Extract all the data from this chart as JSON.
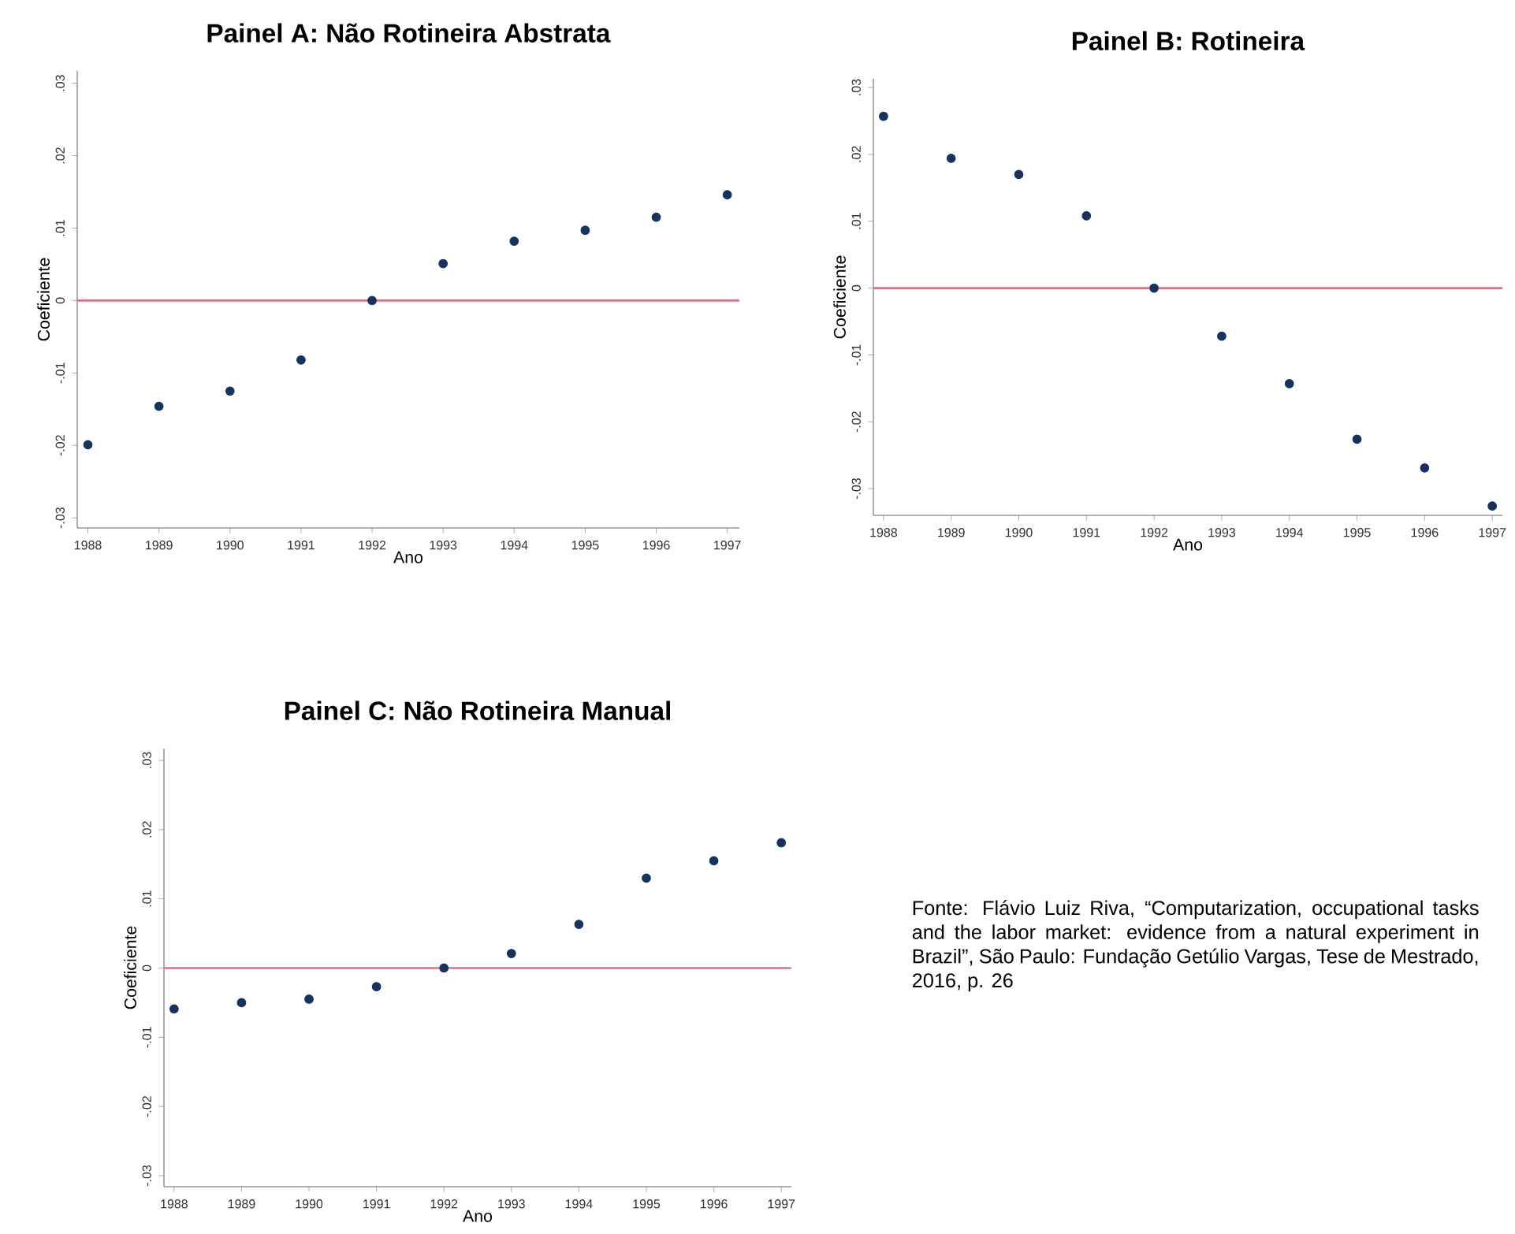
{
  "chart_data": [
    {
      "type": "scatter",
      "title": "**Painel A: Não Rotineira Abstrata**",
      "xlabel": "Ano",
      "ylabel": "Coeficiente",
      "marker": "circle",
      "x": [
        1988,
        1989,
        1990,
        1991,
        1992,
        1993,
        1994,
        1995,
        1996,
        1997
      ],
      "values": [
        -0.0199,
        -0.0146,
        -0.0125,
        -0.0082,
        0,
        0.0051,
        0.0082,
        0.0097,
        0.0115,
        0.0146
      ],
      "color": "#16325f",
      "xlim": [
        1987.85,
        1997.17
      ],
      "ylim": [
        -0.0314,
        0.0317
      ],
      "xticks": [
        1988,
        1989,
        1990,
        1991,
        1992,
        1993,
        1994,
        1995,
        1996,
        1997
      ],
      "yticks": [
        {
          "value": -0.03,
          "label": "-.03"
        },
        {
          "value": -0.02,
          "label": "-.02"
        },
        {
          "value": -0.01,
          "label": "-.01"
        },
        {
          "value": 0,
          "label": "0"
        },
        {
          "value": 0.01,
          "label": ".01"
        },
        {
          "value": 0.02,
          "label": ".02"
        },
        {
          "value": 0.03,
          "label": ".03"
        }
      ],
      "ref_lines": [
        {
          "axis": "y",
          "value": 0,
          "color": "#e0708a"
        }
      ]
    },
    {
      "type": "scatter",
      "title": "**Painel B: Rotineira**",
      "xlabel": "Ano",
      "ylabel": "Coeficiente",
      "marker": "circle",
      "x": [
        1988,
        1989,
        1990,
        1991,
        1992,
        1993,
        1994,
        1995,
        1996,
        1997
      ],
      "values": [
        0.0257,
        0.0194,
        0.017,
        0.0108,
        0,
        -0.0072,
        -0.0143,
        -0.0226,
        -0.0269,
        -0.0326
      ],
      "color": "#16325f",
      "xlim": [
        1987.85,
        1997.15
      ],
      "ylim": [
        -0.034,
        0.0313
      ],
      "xticks": [
        1988,
        1989,
        1990,
        1991,
        1992,
        1993,
        1994,
        1995,
        1996,
        1997
      ],
      "yticks": [
        {
          "value": -0.03,
          "label": "-.03"
        },
        {
          "value": -0.02,
          "label": "-.02"
        },
        {
          "value": -0.01,
          "label": "-.01"
        },
        {
          "value": 0,
          "label": "0"
        },
        {
          "value": 0.01,
          "label": ".01"
        },
        {
          "value": 0.02,
          "label": ".02"
        },
        {
          "value": 0.03,
          "label": ".03"
        }
      ],
      "ref_lines": [
        {
          "axis": "y",
          "value": 0,
          "color": "#e0708a"
        }
      ]
    },
    {
      "type": "scatter",
      "title": "**Painel C: Não Rotineira Manual**",
      "xlabel": "Ano",
      "ylabel": "Coeficiente",
      "marker": "circle",
      "x": [
        1988,
        1989,
        1990,
        1991,
        1992,
        1993,
        1994,
        1995,
        1996,
        1997
      ],
      "values": [
        -0.0059,
        -0.005,
        -0.0045,
        -0.0027,
        0,
        0.0021,
        0.0063,
        0.013,
        0.0155,
        0.0181
      ],
      "color": "#16325f",
      "xlim": [
        1987.85,
        1997.15
      ],
      "ylim": [
        -0.0316,
        0.0317
      ],
      "xticks": [
        1988,
        1989,
        1990,
        1991,
        1992,
        1993,
        1994,
        1995,
        1996,
        1997
      ],
      "yticks": [
        {
          "value": -0.03,
          "label": "-.03"
        },
        {
          "value": -0.02,
          "label": "-.02"
        },
        {
          "value": -0.01,
          "label": "-.01"
        },
        {
          "value": 0,
          "label": "0"
        },
        {
          "value": 0.01,
          "label": ".01"
        },
        {
          "value": 0.02,
          "label": ".02"
        },
        {
          "value": 0.03,
          "label": ".03"
        }
      ],
      "ref_lines": [
        {
          "axis": "y",
          "value": 0,
          "color": "#e0708a"
        }
      ],
      "annotations": [
        "Fonte: Flávio Luiz Riva, “Computarization, occupational tasks and the labor market: evidence from a natural experiment in Brazil”, São Paulo: Fundação Getúlio Vargas, Tese de Mestrado, 2016, p. 26"
      ]
    }
  ]
}
